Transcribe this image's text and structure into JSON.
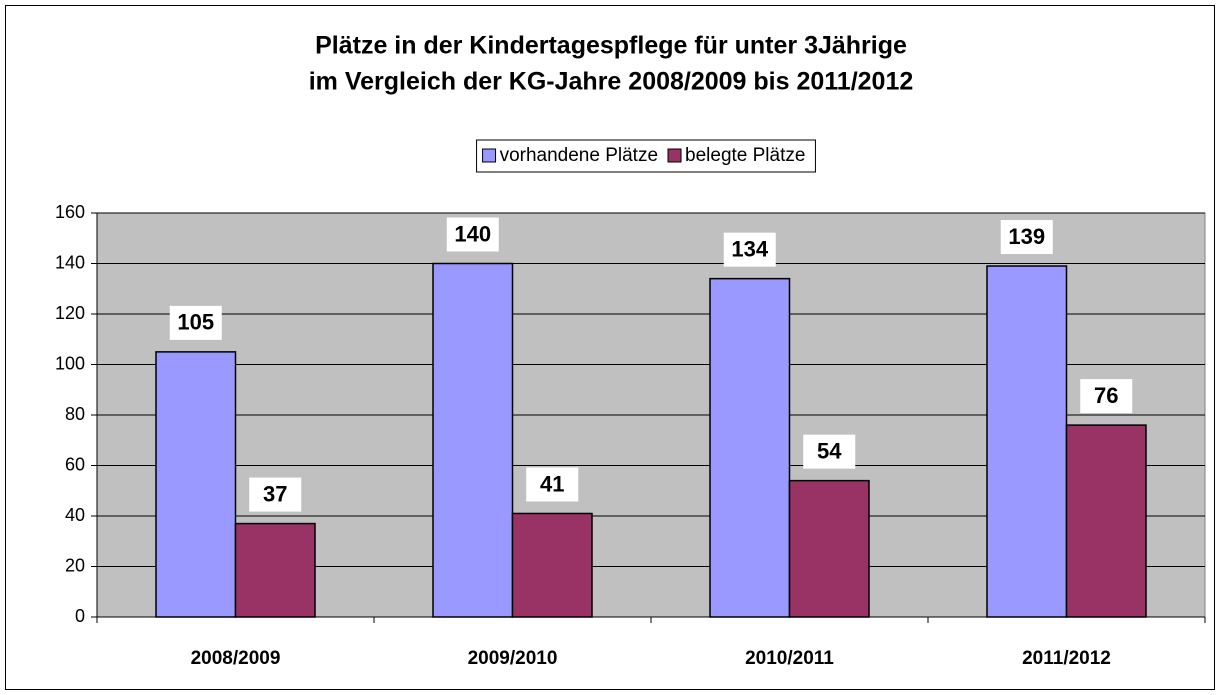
{
  "chart_data": {
    "type": "bar",
    "title": [
      "Plätze in der Kindertagespflege für unter 3Jährige",
      "im Vergleich der KG-Jahre 2008/2009 bis 2011/2012"
    ],
    "categories": [
      "2008/2009",
      "2009/2010",
      "2010/2011",
      "2011/2012"
    ],
    "series": [
      {
        "name": "vorhandene Plätze",
        "color": "#9999ff",
        "values": [
          105,
          140,
          134,
          139
        ]
      },
      {
        "name": "belegte Plätze",
        "color": "#993366",
        "values": [
          37,
          41,
          54,
          76
        ]
      }
    ],
    "ylim": [
      0,
      160
    ],
    "yticks": [
      0,
      20,
      40,
      60,
      80,
      100,
      120,
      140,
      160
    ],
    "grid": true,
    "legend": "top",
    "plot_background": "#c0c0c0"
  }
}
